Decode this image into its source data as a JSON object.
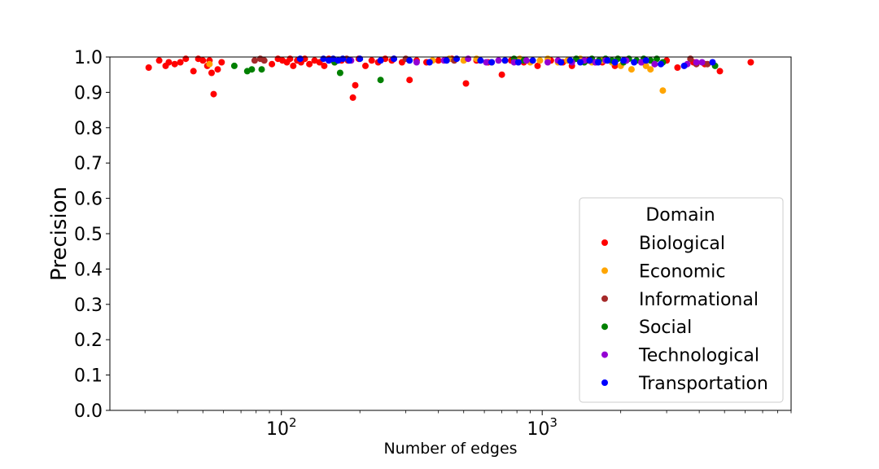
{
  "chart_data": {
    "type": "scatter",
    "title": "",
    "xlabel": "Number of edges",
    "ylabel": "Precision",
    "xscale": "log",
    "xlim": [
      22,
      9000
    ],
    "ylim": [
      0,
      1.0
    ],
    "x_ticks": [
      {
        "value": 100,
        "base": "10",
        "exp": "2"
      },
      {
        "value": 1000,
        "base": "10",
        "exp": "3"
      }
    ],
    "y_ticks": [
      "0.0",
      "0.1",
      "0.2",
      "0.3",
      "0.4",
      "0.5",
      "0.6",
      "0.7",
      "0.8",
      "0.9",
      "1.0"
    ],
    "grid": false,
    "legend": {
      "title": "Domain",
      "position": "lower-right"
    },
    "series": [
      {
        "name": "Biological",
        "color": "#ff0000",
        "points": [
          [
            31,
            0.97
          ],
          [
            34,
            0.99
          ],
          [
            36,
            0.975
          ],
          [
            37,
            0.985
          ],
          [
            39,
            0.98
          ],
          [
            41,
            0.985
          ],
          [
            43,
            0.995
          ],
          [
            46,
            0.96
          ],
          [
            48,
            0.995
          ],
          [
            50,
            0.99
          ],
          [
            52,
            0.975
          ],
          [
            53,
            0.99
          ],
          [
            54,
            0.955
          ],
          [
            55,
            0.895
          ],
          [
            57,
            0.965
          ],
          [
            59,
            0.985
          ],
          [
            92,
            0.98
          ],
          [
            97,
            0.995
          ],
          [
            101,
            0.99
          ],
          [
            105,
            0.985
          ],
          [
            108,
            0.995
          ],
          [
            111,
            0.975
          ],
          [
            115,
            0.99
          ],
          [
            119,
            0.985
          ],
          [
            123,
            0.995
          ],
          [
            128,
            0.98
          ],
          [
            134,
            0.99
          ],
          [
            140,
            0.985
          ],
          [
            146,
            0.975
          ],
          [
            152,
            0.995
          ],
          [
            160,
            0.985
          ],
          [
            170,
            0.99
          ],
          [
            180,
            0.99
          ],
          [
            188,
            0.885
          ],
          [
            192,
            0.92
          ],
          [
            198,
            0.995
          ],
          [
            210,
            0.975
          ],
          [
            222,
            0.99
          ],
          [
            235,
            0.985
          ],
          [
            250,
            0.995
          ],
          [
            265,
            0.99
          ],
          [
            290,
            0.985
          ],
          [
            310,
            0.935
          ],
          [
            330,
            0.99
          ],
          [
            360,
            0.985
          ],
          [
            400,
            0.99
          ],
          [
            450,
            0.995
          ],
          [
            510,
            0.925
          ],
          [
            560,
            0.99
          ],
          [
            620,
            0.985
          ],
          [
            700,
            0.95
          ],
          [
            760,
            0.99
          ],
          [
            850,
            0.985
          ],
          [
            960,
            0.975
          ],
          [
            1080,
            0.99
          ],
          [
            1200,
            0.985
          ],
          [
            1300,
            0.975
          ],
          [
            1500,
            0.99
          ],
          [
            1700,
            0.985
          ],
          [
            1900,
            0.975
          ],
          [
            2100,
            0.99
          ],
          [
            2400,
            0.985
          ],
          [
            2700,
            0.98
          ],
          [
            3000,
            0.99
          ],
          [
            3300,
            0.97
          ],
          [
            3800,
            0.985
          ],
          [
            4200,
            0.98
          ],
          [
            4800,
            0.96
          ],
          [
            6300,
            0.985
          ]
        ]
      },
      {
        "name": "Economic",
        "color": "#ffa500",
        "points": [
          [
            53,
            0.98
          ],
          [
            380,
            0.99
          ],
          [
            440,
            0.995
          ],
          [
            500,
            0.99
          ],
          [
            560,
            0.995
          ],
          [
            640,
            0.985
          ],
          [
            720,
            0.99
          ],
          [
            820,
            0.995
          ],
          [
            900,
            0.985
          ],
          [
            980,
            0.99
          ],
          [
            1050,
            0.995
          ],
          [
            1150,
            0.985
          ],
          [
            1250,
            0.99
          ],
          [
            1400,
            0.995
          ],
          [
            1550,
            0.985
          ],
          [
            1700,
            0.99
          ],
          [
            1850,
            0.985
          ],
          [
            2000,
            0.975
          ],
          [
            2200,
            0.965
          ],
          [
            2500,
            0.975
          ],
          [
            2600,
            0.965
          ],
          [
            2900,
            0.905
          ]
        ]
      },
      {
        "name": "Informational",
        "color": "#a52a2a",
        "points": [
          [
            79,
            0.99
          ],
          [
            83,
            0.995
          ],
          [
            86,
            0.99
          ],
          [
            178,
            0.995
          ],
          [
            300,
            0.995
          ],
          [
            460,
            0.99
          ],
          [
            1600,
            0.985
          ],
          [
            3700,
            0.995
          ],
          [
            3900,
            0.98
          ],
          [
            4300,
            0.98
          ]
        ]
      },
      {
        "name": "Social",
        "color": "#008000",
        "points": [
          [
            66,
            0.975
          ],
          [
            74,
            0.96
          ],
          [
            77,
            0.965
          ],
          [
            84,
            0.965
          ],
          [
            160,
            0.985
          ],
          [
            168,
            0.955
          ],
          [
            240,
            0.935
          ],
          [
            780,
            0.995
          ],
          [
            850,
            0.99
          ],
          [
            1350,
            0.995
          ],
          [
            1450,
            0.985
          ],
          [
            1550,
            0.995
          ],
          [
            1650,
            0.99
          ],
          [
            1750,
            0.995
          ],
          [
            1850,
            0.99
          ],
          [
            1950,
            0.995
          ],
          [
            2050,
            0.985
          ],
          [
            2150,
            0.995
          ],
          [
            2300,
            0.99
          ],
          [
            2450,
            0.995
          ],
          [
            2600,
            0.99
          ],
          [
            2750,
            0.995
          ],
          [
            2900,
            0.985
          ],
          [
            4600,
            0.975
          ]
        ]
      },
      {
        "name": "Technological",
        "color": "#9400d3",
        "points": [
          [
            185,
            0.99
          ],
          [
            270,
            0.995
          ],
          [
            330,
            0.985
          ],
          [
            420,
            0.99
          ],
          [
            520,
            0.995
          ],
          [
            610,
            0.985
          ],
          [
            680,
            0.99
          ],
          [
            780,
            0.985
          ],
          [
            870,
            0.99
          ],
          [
            1050,
            0.985
          ],
          [
            1150,
            0.99
          ],
          [
            1300,
            0.985
          ],
          [
            1450,
            0.99
          ],
          [
            1600,
            0.985
          ],
          [
            1750,
            0.99
          ],
          [
            1900,
            0.985
          ],
          [
            2100,
            0.99
          ],
          [
            2400,
            0.985
          ],
          [
            2700,
            0.98
          ],
          [
            3600,
            0.98
          ],
          [
            3900,
            0.985
          ],
          [
            4100,
            0.985
          ]
        ]
      },
      {
        "name": "Transportation",
        "color": "#0000ff",
        "points": [
          [
            118,
            0.995
          ],
          [
            145,
            0.995
          ],
          [
            152,
            0.99
          ],
          [
            158,
            0.995
          ],
          [
            165,
            0.99
          ],
          [
            172,
            0.995
          ],
          [
            182,
            0.99
          ],
          [
            200,
            0.995
          ],
          [
            240,
            0.99
          ],
          [
            270,
            0.995
          ],
          [
            310,
            0.99
          ],
          [
            370,
            0.985
          ],
          [
            430,
            0.99
          ],
          [
            470,
            0.995
          ],
          [
            580,
            0.99
          ],
          [
            640,
            0.985
          ],
          [
            720,
            0.99
          ],
          [
            810,
            0.985
          ],
          [
            920,
            0.99
          ],
          [
            1180,
            0.985
          ],
          [
            1280,
            0.99
          ],
          [
            1400,
            0.985
          ],
          [
            1520,
            0.99
          ],
          [
            1640,
            0.985
          ],
          [
            1780,
            0.99
          ],
          [
            1900,
            0.985
          ],
          [
            2050,
            0.99
          ],
          [
            2250,
            0.985
          ],
          [
            2500,
            0.99
          ],
          [
            2850,
            0.98
          ],
          [
            3500,
            0.975
          ],
          [
            4500,
            0.985
          ]
        ]
      }
    ]
  }
}
